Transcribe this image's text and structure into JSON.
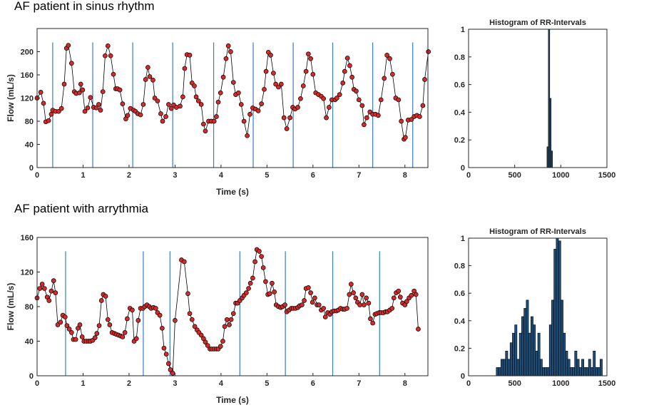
{
  "chart_data": [
    {
      "type": "line",
      "title": "AF patient in sinus rhythm",
      "xlabel": "Time (s)",
      "ylabel": "Flow (mL/s)",
      "xlim": [
        0,
        8.5
      ],
      "xticks": [
        0,
        1,
        2,
        3,
        4,
        5,
        6,
        7,
        8
      ],
      "ylim": [
        0,
        240
      ],
      "yticks": [
        0,
        40,
        80,
        120,
        160,
        200
      ],
      "color": "#000000",
      "marker_color": "#d42a2a",
      "marker_line_color": "#3a7dbf",
      "markers": [
        0.34,
        1.21,
        2.08,
        2.95,
        3.84,
        4.7,
        5.57,
        6.43,
        7.3,
        8.17
      ],
      "x": [
        0,
        0.08,
        0.14,
        0.19,
        0.25,
        0.31,
        0.34,
        0.4,
        0.47,
        0.53,
        0.59,
        0.64,
        0.68,
        0.75,
        0.81,
        0.85,
        0.92,
        0.95,
        0.99,
        1.04,
        1.1,
        1.16,
        1.23,
        1.29,
        1.34,
        1.38,
        1.43,
        1.48,
        1.54,
        1.6,
        1.66,
        1.71,
        1.75,
        1.8,
        1.86,
        1.93,
        1.97,
        2.03,
        2.1,
        2.14,
        2.19,
        2.25,
        2.31,
        2.36,
        2.41,
        2.45,
        2.52,
        2.56,
        2.62,
        2.69,
        2.73,
        2.8,
        2.86,
        2.92,
        2.97,
        3.03,
        3.11,
        3.17,
        3.21,
        3.26,
        3.32,
        3.37,
        3.42,
        3.46,
        3.51,
        3.57,
        3.62,
        3.66,
        3.73,
        3.79,
        3.85,
        3.9,
        3.94,
        3.99,
        4.05,
        4.11,
        4.16,
        4.21,
        4.27,
        4.32,
        4.38,
        4.44,
        4.5,
        4.57,
        4.63,
        4.69,
        4.75,
        4.81,
        4.88,
        4.94,
        4.98,
        5.03,
        5.08,
        5.14,
        5.19,
        5.25,
        5.31,
        5.37,
        5.43,
        5.5,
        5.56,
        5.61,
        5.67,
        5.73,
        5.79,
        5.85,
        5.9,
        5.95,
        6,
        6.06,
        6.12,
        6.18,
        6.23,
        6.29,
        6.35,
        6.41,
        6.48,
        6.52,
        6.58,
        6.65,
        6.69,
        6.75,
        6.8,
        6.85,
        6.89,
        6.94,
        7,
        7.07,
        7.11,
        7.17,
        7.24,
        7.3,
        7.36,
        7.42,
        7.48,
        7.55,
        7.61,
        7.67,
        7.73,
        7.8,
        7.86,
        7.92,
        7.98,
        8.01,
        8.07,
        8.14,
        8.2,
        8.26,
        8.32,
        8.39,
        8.43,
        8.51
      ],
      "values": [
        120,
        130,
        111,
        79,
        81,
        92,
        99,
        97,
        97,
        102,
        144,
        206,
        211,
        180,
        131,
        128,
        129,
        144,
        134,
        97,
        103,
        121,
        104,
        103,
        109,
        99,
        131,
        193,
        210,
        193,
        161,
        136,
        136,
        134,
        110,
        84,
        90,
        102,
        99,
        97,
        93,
        91,
        109,
        152,
        173,
        157,
        151,
        120,
        115,
        93,
        80,
        88,
        109,
        102,
        108,
        104,
        106,
        122,
        171,
        195,
        194,
        146,
        141,
        122,
        115,
        109,
        75,
        63,
        80,
        80,
        80,
        88,
        113,
        129,
        156,
        188,
        210,
        200,
        147,
        126,
        129,
        109,
        80,
        55,
        92,
        103,
        101,
        98,
        110,
        135,
        166,
        199,
        194,
        163,
        144,
        139,
        144,
        86,
        67,
        86,
        104,
        101,
        104,
        119,
        141,
        166,
        196,
        188,
        161,
        129,
        126,
        123,
        119,
        86,
        104,
        117,
        117,
        120,
        126,
        146,
        166,
        189,
        176,
        156,
        135,
        132,
        117,
        107,
        74,
        86,
        96,
        92,
        92,
        90,
        117,
        154,
        194,
        188,
        161,
        120,
        117,
        80,
        49,
        52,
        82,
        83,
        88,
        90,
        88,
        107,
        152,
        200
      ]
    },
    {
      "type": "histogram",
      "title": "Histogram of RR-Intervals",
      "xlim": [
        0,
        1500
      ],
      "xticks": [
        0,
        500,
        1000,
        1500
      ],
      "ylim": [
        0,
        1
      ],
      "yticks": [
        0,
        0.2,
        0.4,
        0.6,
        0.8,
        1
      ],
      "color": "#1f4e79",
      "bins": [
        850,
        865,
        880,
        895,
        910
      ],
      "counts": [
        0.15,
        1,
        0.5,
        0.12
      ]
    },
    {
      "type": "line",
      "title": "AF patient with arrythmia",
      "xlabel": "Time (s)",
      "ylabel": "Flow (mL/s)",
      "xlim": [
        0,
        8.5
      ],
      "xticks": [
        0,
        1,
        2,
        3,
        4,
        5,
        6,
        7,
        8
      ],
      "ylim": [
        0,
        160
      ],
      "yticks": [
        0,
        40,
        80,
        120,
        160
      ],
      "color": "#000000",
      "marker_color": "#d42a2a",
      "marker_line_color": "#3a7dbf",
      "markers": [
        0.62,
        2.31,
        2.89,
        4.41,
        5.4,
        6.43,
        7.45
      ],
      "x": [
        0,
        0.06,
        0.11,
        0.16,
        0.22,
        0.26,
        0.31,
        0.36,
        0.4,
        0.45,
        0.51,
        0.56,
        0.61,
        0.65,
        0.7,
        0.75,
        0.79,
        0.84,
        0.89,
        0.93,
        0.98,
        1.02,
        1.07,
        1.12,
        1.16,
        1.21,
        1.26,
        1.3,
        1.35,
        1.4,
        1.44,
        1.49,
        1.54,
        1.58,
        1.63,
        1.68,
        1.72,
        1.77,
        1.82,
        1.86,
        1.91,
        1.96,
        2.02,
        2.07,
        2.11,
        2.16,
        2.2,
        2.25,
        2.3,
        2.34,
        2.39,
        2.44,
        2.48,
        2.53,
        2.58,
        2.62,
        2.67,
        2.72,
        2.76,
        2.81,
        2.86,
        2.9,
        2.95,
        3,
        3.14,
        3.2,
        3.28,
        3.32,
        3.37,
        3.43,
        3.48,
        3.52,
        3.57,
        3.62,
        3.66,
        3.71,
        3.76,
        3.8,
        3.85,
        3.9,
        3.94,
        3.99,
        4.04,
        4.08,
        4.13,
        4.18,
        4.22,
        4.27,
        4.32,
        4.36,
        4.41,
        4.46,
        4.5,
        4.55,
        4.6,
        4.64,
        4.69,
        4.74,
        4.78,
        4.83,
        4.88,
        4.92,
        4.97,
        5.02,
        5.06,
        5.11,
        5.16,
        5.2,
        5.25,
        5.3,
        5.34,
        5.39,
        5.43,
        5.48,
        5.53,
        5.57,
        5.62,
        5.67,
        5.71,
        5.76,
        5.81,
        5.85,
        5.9,
        5.95,
        5.99,
        6.04,
        6.09,
        6.13,
        6.18,
        6.23,
        6.27,
        6.32,
        6.37,
        6.41,
        6.46,
        6.51,
        6.55,
        6.6,
        6.65,
        6.69,
        6.74,
        6.79,
        6.83,
        6.88,
        6.93,
        6.97,
        7.02,
        7.07,
        7.11,
        7.16,
        7.21,
        7.25,
        7.3,
        7.35,
        7.39,
        7.44,
        7.48,
        7.53,
        7.58,
        7.62,
        7.67,
        7.72,
        7.76,
        7.81,
        7.86,
        7.9,
        7.95,
        8,
        8.04,
        8.09,
        8.14,
        8.2,
        8.24,
        8.29
      ],
      "values": [
        90,
        101,
        106,
        101,
        91,
        87,
        98,
        110,
        96,
        59,
        62,
        70,
        68,
        58,
        54,
        50,
        42,
        42,
        55,
        59,
        45,
        40,
        40,
        40,
        40,
        41,
        44,
        49,
        58,
        87,
        94,
        92,
        65,
        59,
        50,
        49,
        48,
        47,
        46,
        45,
        50,
        66,
        78,
        76,
        40,
        43,
        64,
        78,
        78,
        80,
        82,
        80,
        78,
        79,
        78,
        73,
        70,
        55,
        32,
        25,
        14,
        7,
        3,
        64,
        134,
        132,
        95,
        72,
        65,
        57,
        53,
        50,
        47,
        43,
        39,
        35,
        31,
        31,
        31,
        31,
        31,
        34,
        40,
        57,
        65,
        59,
        65,
        72,
        84,
        84,
        87,
        90,
        93,
        96,
        101,
        107,
        113,
        132,
        146,
        144,
        138,
        125,
        109,
        94,
        95,
        107,
        97,
        82,
        80,
        79,
        80,
        82,
        74,
        76,
        78,
        78,
        78,
        79,
        81,
        82,
        87,
        101,
        102,
        96,
        85,
        90,
        82,
        82,
        76,
        78,
        68,
        73,
        71,
        74,
        75,
        75,
        76,
        78,
        77,
        77,
        78,
        94,
        106,
        96,
        90,
        85,
        82,
        94,
        82,
        90,
        84,
        66,
        61,
        71,
        72,
        73,
        73,
        73,
        74,
        74,
        76,
        78,
        90,
        96,
        98,
        91,
        84,
        82,
        86,
        90,
        93,
        98,
        94,
        54
      ]
    },
    {
      "type": "histogram",
      "title": "Histogram of RR-Intervals",
      "xlim": [
        0,
        1500
      ],
      "xticks": [
        0,
        500,
        1000,
        1500
      ],
      "ylim": [
        0,
        1
      ],
      "yticks": [
        0,
        0.2,
        0.4,
        0.6,
        0.8,
        1
      ],
      "color": "#1f4e79",
      "bins": [
        300,
        325,
        350,
        375,
        400,
        425,
        450,
        475,
        500,
        525,
        550,
        575,
        600,
        625,
        650,
        675,
        700,
        725,
        750,
        775,
        800,
        825,
        850,
        875,
        900,
        925,
        950,
        975,
        1000,
        1025,
        1050,
        1075,
        1100,
        1125,
        1150,
        1175,
        1200,
        1225,
        1250,
        1275,
        1300,
        1325,
        1350,
        1375,
        1400,
        1425,
        1450
      ],
      "counts": [
        0.06,
        0.06,
        0.12,
        0.12,
        0.18,
        0.12,
        0.24,
        0.31,
        0.37,
        0.12,
        0.31,
        0.43,
        0.49,
        0.55,
        0.31,
        0.43,
        0.37,
        0.18,
        0.31,
        0.12,
        0.06,
        0.06,
        0.06,
        0.37,
        0.55,
        0.92,
        1,
        0.98,
        0.55,
        0.31,
        0.18,
        0.12,
        0.06,
        0.06,
        0.18,
        0.12,
        0.06,
        0.12,
        0.06,
        0.06,
        0.12,
        0.06,
        0.18,
        0.06,
        0.06,
        0.12
      ]
    }
  ]
}
